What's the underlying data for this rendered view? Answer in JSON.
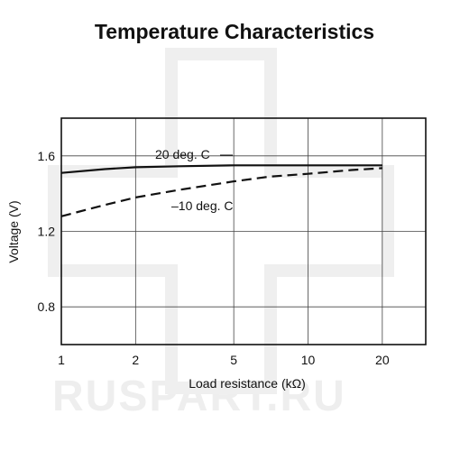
{
  "watermark": "RUSPART.RU",
  "chart_data": {
    "type": "line",
    "title": "Temperature Characteristics",
    "xlabel": "Load resistance (kΩ)",
    "ylabel": "Voltage (V)",
    "x_scale": "log",
    "xlim": [
      1,
      30
    ],
    "ylim": [
      0.6,
      1.8
    ],
    "x_ticks": [
      1,
      2,
      5,
      10,
      20
    ],
    "y_ticks": [
      0.8,
      1.2,
      1.6
    ],
    "grid": true,
    "series": [
      {
        "name": "20 deg. C",
        "style": "solid",
        "x": [
          1,
          1.5,
          2,
          3,
          5,
          7,
          10,
          15,
          20
        ],
        "y": [
          1.51,
          1.53,
          1.54,
          1.545,
          1.55,
          1.55,
          1.55,
          1.55,
          1.55
        ]
      },
      {
        "name": "–10 deg. C",
        "style": "dashed",
        "x": [
          1,
          1.5,
          2,
          3,
          5,
          7,
          10,
          15,
          20
        ],
        "y": [
          1.28,
          1.34,
          1.38,
          1.42,
          1.465,
          1.49,
          1.505,
          1.525,
          1.535
        ]
      }
    ]
  }
}
